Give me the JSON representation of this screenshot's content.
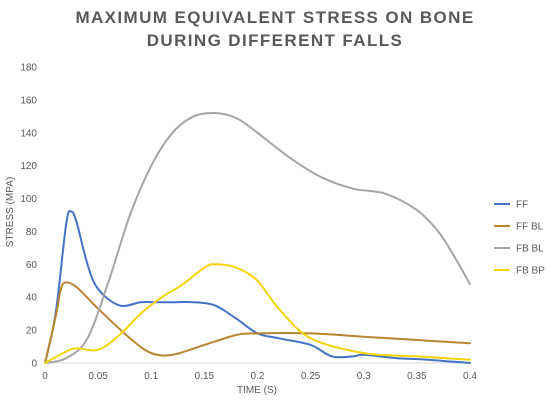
{
  "chart_data": {
    "type": "line",
    "title_lines": [
      "MAXIMUM EQUIVALENT STRESS ON BONE",
      "DURING DIFFERENT FALLS"
    ],
    "xlabel": "TIME (S)",
    "ylabel": "STRESS (MPA)",
    "xlim": [
      0,
      0.4
    ],
    "ylim": [
      0,
      180
    ],
    "xticks": [
      "0",
      "0.05",
      "0.1",
      "0.15",
      "0.2",
      "0.25",
      "0.3",
      "0.35",
      "0.4"
    ],
    "yticks": [
      "0",
      "20",
      "40",
      "60",
      "80",
      "100",
      "120",
      "140",
      "160",
      "180"
    ],
    "grid": false,
    "legend_position": "right",
    "series": [
      {
        "name": "FF",
        "color": "#4472c4",
        "x": [
          0,
          0.01,
          0.02,
          0.025,
          0.03,
          0.04,
          0.05,
          0.07,
          0.09,
          0.1,
          0.12,
          0.14,
          0.16,
          0.18,
          0.2,
          0.22,
          0.25,
          0.27,
          0.29,
          0.3,
          0.33,
          0.36,
          0.4
        ],
        "y": [
          0,
          30,
          85,
          92,
          85,
          60,
          45,
          35,
          37,
          37,
          37,
          37,
          35,
          27,
          18,
          15,
          11,
          4,
          4,
          5,
          3,
          2,
          0
        ]
      },
      {
        "name": "FF BL",
        "color": "#b8862f",
        "x": [
          0,
          0.01,
          0.015,
          0.02,
          0.03,
          0.05,
          0.08,
          0.1,
          0.12,
          0.15,
          0.18,
          0.2,
          0.25,
          0.3,
          0.35,
          0.4
        ],
        "y": [
          0,
          28,
          45,
          49,
          46,
          33,
          15,
          6,
          5,
          11,
          17,
          18,
          18,
          16,
          14,
          12
        ]
      },
      {
        "name": "FB BL",
        "color": "#a5a5a5",
        "x": [
          0,
          0.02,
          0.04,
          0.06,
          0.08,
          0.1,
          0.12,
          0.14,
          0.16,
          0.18,
          0.2,
          0.23,
          0.26,
          0.29,
          0.32,
          0.35,
          0.37,
          0.385,
          0.4
        ],
        "y": [
          0,
          3,
          15,
          50,
          90,
          120,
          140,
          150,
          152,
          149,
          140,
          125,
          113,
          106,
          103,
          93,
          80,
          65,
          48
        ]
      },
      {
        "name": "FB BP",
        "color": "#f2d400",
        "x": [
          0,
          0.02,
          0.03,
          0.05,
          0.07,
          0.09,
          0.11,
          0.13,
          0.15,
          0.16,
          0.18,
          0.2,
          0.22,
          0.25,
          0.3,
          0.35,
          0.4
        ],
        "y": [
          0,
          7,
          9,
          8,
          17,
          30,
          40,
          48,
          58,
          60,
          58,
          50,
          33,
          15,
          6,
          4,
          2
        ]
      }
    ]
  }
}
